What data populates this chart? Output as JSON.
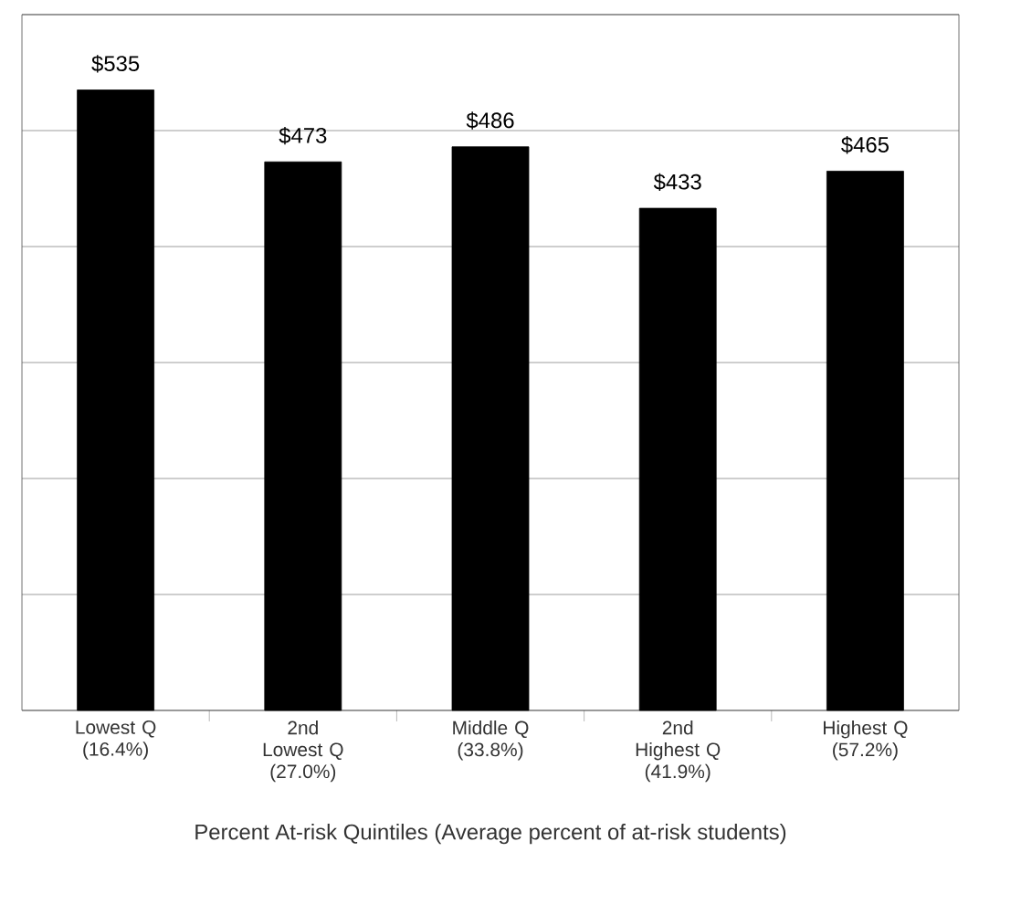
{
  "chart_data": {
    "type": "bar",
    "xlabel": "Percent At-risk Quintiles (Average percent of at-risk students)",
    "categories": [
      "Lowest Q (16.4%)",
      "2nd Lowest Q (27.0%)",
      "Middle Q (33.8%)",
      "2nd Highest Q (41.9%)",
      "Highest Q (57.2%)"
    ],
    "values": [
      535,
      473,
      486,
      433,
      465
    ],
    "value_labels": [
      "$535",
      "$473",
      "$486",
      "$433",
      "$465"
    ],
    "color": "#000000",
    "ylim": [
      0,
      600
    ],
    "yticks": [
      {
        "value": 0,
        "label": null
      },
      {
        "value": 100,
        "label": null
      },
      {
        "value": 200,
        "label": null
      },
      {
        "value": 300,
        "label": null
      },
      {
        "value": 400,
        "label": null
      },
      {
        "value": 500,
        "label": null
      },
      {
        "value": 600,
        "label": null
      }
    ],
    "grid": "y",
    "tick_labels": "x"
  }
}
